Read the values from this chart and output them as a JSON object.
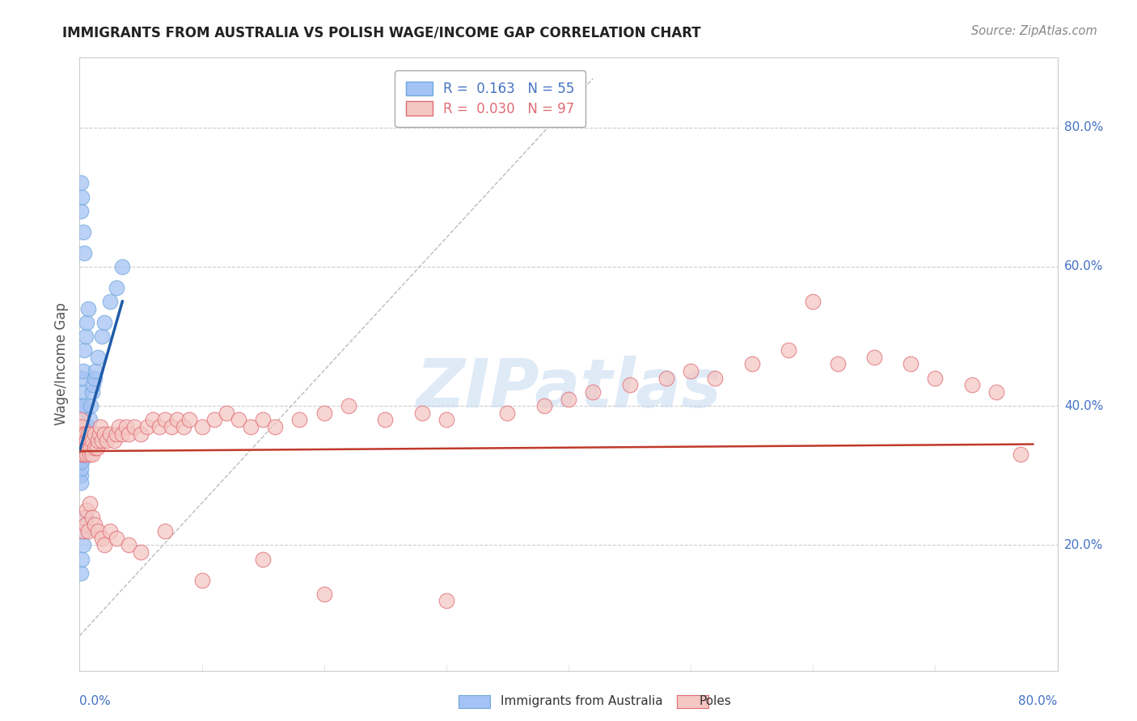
{
  "title": "IMMIGRANTS FROM AUSTRALIA VS POLISH WAGE/INCOME GAP CORRELATION CHART",
  "source": "Source: ZipAtlas.com",
  "ylabel": "Wage/Income Gap",
  "ytick_labels": [
    "20.0%",
    "40.0%",
    "60.0%",
    "80.0%"
  ],
  "ytick_positions": [
    0.2,
    0.4,
    0.6,
    0.8
  ],
  "xmin": 0.0,
  "xmax": 0.8,
  "ymin": 0.02,
  "ymax": 0.9,
  "legend_line1": "R =  0.163   N = 55",
  "legend_line2": "R =  0.030   N = 97",
  "legend_color1": "#4472c4",
  "legend_color2": "#e06c75",
  "watermark_text": "ZIPatlas",
  "australia_color": "#a4c2f4",
  "australia_edge": "#6fa8dc",
  "poles_color": "#f4c7c3",
  "poles_edge": "#e06c75",
  "trendline_australia_color": "#1f5ba8",
  "trendline_poles_color": "#c0392b",
  "diagonal_color": "#bbbbbb",
  "australia_points_x": [
    0.001,
    0.001,
    0.001,
    0.001,
    0.001,
    0.001,
    0.001,
    0.001,
    0.001,
    0.001,
    0.002,
    0.002,
    0.002,
    0.002,
    0.002,
    0.002,
    0.002,
    0.002,
    0.003,
    0.003,
    0.003,
    0.003,
    0.003,
    0.004,
    0.004,
    0.004,
    0.005,
    0.005,
    0.005,
    0.006,
    0.006,
    0.007,
    0.007,
    0.008,
    0.009,
    0.01,
    0.011,
    0.012,
    0.013,
    0.015,
    0.018,
    0.02,
    0.025,
    0.03,
    0.035,
    0.001,
    0.001,
    0.002,
    0.003,
    0.004,
    0.001,
    0.002,
    0.003,
    0.004,
    0.005
  ],
  "australia_points_y": [
    0.32,
    0.33,
    0.34,
    0.35,
    0.36,
    0.37,
    0.38,
    0.3,
    0.31,
    0.29,
    0.32,
    0.33,
    0.34,
    0.35,
    0.36,
    0.4,
    0.42,
    0.44,
    0.33,
    0.34,
    0.35,
    0.4,
    0.45,
    0.34,
    0.35,
    0.48,
    0.35,
    0.36,
    0.5,
    0.36,
    0.52,
    0.37,
    0.54,
    0.38,
    0.4,
    0.42,
    0.43,
    0.44,
    0.45,
    0.47,
    0.5,
    0.52,
    0.55,
    0.57,
    0.6,
    0.68,
    0.72,
    0.7,
    0.65,
    0.62,
    0.16,
    0.18,
    0.2,
    0.22,
    0.24
  ],
  "poles_points_x": [
    0.001,
    0.001,
    0.002,
    0.002,
    0.003,
    0.003,
    0.004,
    0.004,
    0.005,
    0.005,
    0.006,
    0.006,
    0.007,
    0.007,
    0.008,
    0.008,
    0.009,
    0.009,
    0.01,
    0.01,
    0.012,
    0.012,
    0.014,
    0.015,
    0.016,
    0.017,
    0.018,
    0.02,
    0.022,
    0.025,
    0.028,
    0.03,
    0.032,
    0.035,
    0.038,
    0.04,
    0.045,
    0.05,
    0.055,
    0.06,
    0.065,
    0.07,
    0.075,
    0.08,
    0.085,
    0.09,
    0.1,
    0.11,
    0.12,
    0.13,
    0.14,
    0.15,
    0.16,
    0.18,
    0.2,
    0.22,
    0.25,
    0.28,
    0.3,
    0.35,
    0.38,
    0.4,
    0.42,
    0.45,
    0.48,
    0.5,
    0.52,
    0.55,
    0.58,
    0.6,
    0.62,
    0.65,
    0.68,
    0.7,
    0.73,
    0.75,
    0.77,
    0.003,
    0.004,
    0.005,
    0.006,
    0.007,
    0.008,
    0.01,
    0.012,
    0.015,
    0.018,
    0.02,
    0.025,
    0.03,
    0.04,
    0.05,
    0.07,
    0.1,
    0.15,
    0.2,
    0.3
  ],
  "poles_points_y": [
    0.34,
    0.38,
    0.33,
    0.37,
    0.34,
    0.36,
    0.33,
    0.35,
    0.34,
    0.36,
    0.33,
    0.35,
    0.34,
    0.36,
    0.33,
    0.35,
    0.34,
    0.36,
    0.33,
    0.35,
    0.34,
    0.36,
    0.34,
    0.35,
    0.36,
    0.37,
    0.35,
    0.36,
    0.35,
    0.36,
    0.35,
    0.36,
    0.37,
    0.36,
    0.37,
    0.36,
    0.37,
    0.36,
    0.37,
    0.38,
    0.37,
    0.38,
    0.37,
    0.38,
    0.37,
    0.38,
    0.37,
    0.38,
    0.39,
    0.38,
    0.37,
    0.38,
    0.37,
    0.38,
    0.39,
    0.4,
    0.38,
    0.39,
    0.38,
    0.39,
    0.4,
    0.41,
    0.42,
    0.43,
    0.44,
    0.45,
    0.44,
    0.46,
    0.48,
    0.55,
    0.46,
    0.47,
    0.46,
    0.44,
    0.43,
    0.42,
    0.33,
    0.22,
    0.24,
    0.23,
    0.25,
    0.22,
    0.26,
    0.24,
    0.23,
    0.22,
    0.21,
    0.2,
    0.22,
    0.21,
    0.2,
    0.19,
    0.22,
    0.15,
    0.18,
    0.13,
    0.12
  ]
}
